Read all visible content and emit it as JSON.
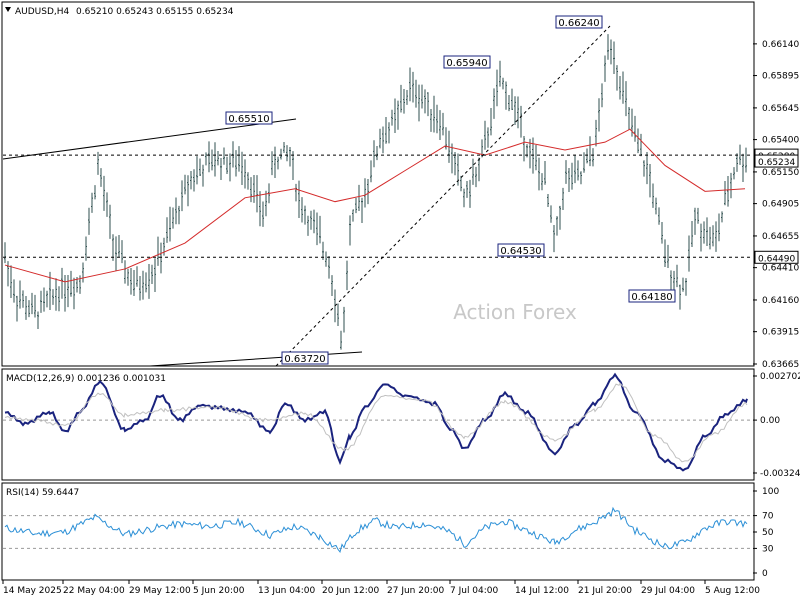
{
  "chart_data": [
    {
      "type": "candlestick",
      "panel": "price",
      "title": "AUDUSD,H4",
      "ohlc_header": "0.65210 0.65243 0.65155 0.65234",
      "ylim": [
        0.63665,
        0.6634
      ],
      "yticks": [
        "0.66140",
        "0.65895",
        "0.65645",
        "0.65400",
        "0.65150",
        "0.64905",
        "0.64655",
        "0.64410",
        "0.64160",
        "0.63915",
        "0.63665"
      ],
      "last_price": "0.65234",
      "series": [
        {
          "name": "",
          "kind": "moving-average",
          "color": "#d42b2b",
          "points": [
            [
              0,
              0.6443
            ],
            [
              60,
              0.643
            ],
            [
              120,
              0.644
            ],
            [
              180,
              0.646
            ],
            [
              240,
              0.6495
            ],
            [
              290,
              0.6502
            ],
            [
              330,
              0.6492
            ],
            [
              360,
              0.6497
            ],
            [
              400,
              0.6516
            ],
            [
              440,
              0.6535
            ],
            [
              480,
              0.6528
            ],
            [
              520,
              0.6538
            ],
            [
              560,
              0.6532
            ],
            [
              600,
              0.6538
            ],
            [
              625,
              0.6548
            ],
            [
              660,
              0.652
            ],
            [
              700,
              0.65
            ],
            [
              740,
              0.6502
            ]
          ]
        }
      ],
      "key_points": [
        {
          "label": "0.65510",
          "value": 0.6551,
          "pos": 0.34
        },
        {
          "label": "0.65940",
          "value": 0.6594,
          "pos": 0.67
        },
        {
          "label": "0.66240",
          "value": 0.6624,
          "pos": 0.82
        },
        {
          "label": "0.64530",
          "value": 0.6453,
          "pos": 0.73
        },
        {
          "label": "0.64180",
          "value": 0.6418,
          "pos": 0.91
        },
        {
          "label": "0.63720",
          "value": 0.6372,
          "pos": 0.45
        }
      ],
      "horizontal_levels": [
        {
          "label": "0.65280",
          "value": 0.6528,
          "style": "dashed"
        },
        {
          "label": "0.64490",
          "value": 0.6449,
          "style": "dashed"
        }
      ],
      "watermark": "Action Forex",
      "x_ticks": [
        "14 May 2025",
        "22 May 04:00",
        "29 May 12:00",
        "5 Jun 20:00",
        "13 Jun 04:00",
        "20 Jun 12:00",
        "27 Jun 20:00",
        "7 Jul 04:00",
        "14 Jul 12:00",
        "21 Jul 20:00",
        "29 Jul 04:00",
        "5 Aug 12:00"
      ]
    },
    {
      "type": "line",
      "panel": "macd",
      "title": "MACD(12,26,9) 0.001236 0.001031",
      "ylim": [
        -0.003241,
        0.002702
      ],
      "yticks": [
        "0.002702",
        "0.00",
        "-0.003241"
      ],
      "series": [
        {
          "name": "",
          "color": "#1a237e",
          "points": [
            [
              0,
              0.0005
            ],
            [
              20,
              -0.0002
            ],
            [
              45,
              0.0005
            ],
            [
              60,
              -0.0007
            ],
            [
              75,
              0.0005
            ],
            [
              95,
              0.0023
            ],
            [
              120,
              -0.0006
            ],
            [
              140,
              0.0
            ],
            [
              155,
              0.0015
            ],
            [
              175,
              0.0
            ],
            [
              195,
              0.0009
            ],
            [
              210,
              0.0008
            ],
            [
              240,
              0.0005
            ],
            [
              265,
              -0.0007
            ],
            [
              280,
              0.001
            ],
            [
              300,
              0.0
            ],
            [
              320,
              0.0005
            ],
            [
              335,
              -0.0025
            ],
            [
              345,
              -0.001
            ],
            [
              360,
              0.0008
            ],
            [
              380,
              0.0022
            ],
            [
              400,
              0.0015
            ],
            [
              430,
              0.001
            ],
            [
              445,
              -0.0005
            ],
            [
              460,
              -0.0017
            ],
            [
              480,
              0.0
            ],
            [
              500,
              0.0016
            ],
            [
              520,
              0.0005
            ],
            [
              550,
              -0.002
            ],
            [
              570,
              -0.0003
            ],
            [
              590,
              0.001
            ],
            [
              610,
              0.0027
            ],
            [
              630,
              0.0005
            ],
            [
              660,
              -0.0025
            ],
            [
              680,
              -0.003
            ],
            [
              700,
              -0.001
            ],
            [
              720,
              0.0003
            ],
            [
              742,
              0.0012
            ]
          ]
        },
        {
          "name": "",
          "color": "#c0c0c0",
          "points": [
            [
              0,
              0.0002
            ],
            [
              30,
              0.0
            ],
            [
              60,
              -0.0003
            ],
            [
              95,
              0.0016
            ],
            [
              120,
              0.0003
            ],
            [
              160,
              0.0006
            ],
            [
              210,
              0.0008
            ],
            [
              260,
              0.0
            ],
            [
              300,
              0.0004
            ],
            [
              340,
              -0.0018
            ],
            [
              380,
              0.0015
            ],
            [
              420,
              0.0012
            ],
            [
              460,
              -0.001
            ],
            [
              500,
              0.0011
            ],
            [
              550,
              -0.0012
            ],
            [
              590,
              0.0006
            ],
            [
              615,
              0.0022
            ],
            [
              650,
              -0.001
            ],
            [
              680,
              -0.0025
            ],
            [
              710,
              -0.0008
            ],
            [
              742,
              0.001
            ]
          ]
        }
      ]
    },
    {
      "type": "line",
      "panel": "rsi",
      "title": "RSI(14) 59.6447",
      "ylim": [
        0,
        100
      ],
      "yticks": [
        "100",
        "70",
        "50",
        "30",
        "0"
      ],
      "series": [
        {
          "name": "",
          "color": "#2b8fd6",
          "points": [
            [
              0,
              55
            ],
            [
              30,
              48
            ],
            [
              60,
              50
            ],
            [
              90,
              68
            ],
            [
              120,
              47
            ],
            [
              150,
              55
            ],
            [
              175,
              60
            ],
            [
              205,
              57
            ],
            [
              235,
              62
            ],
            [
              265,
              46
            ],
            [
              290,
              57
            ],
            [
              315,
              44
            ],
            [
              335,
              28
            ],
            [
              350,
              50
            ],
            [
              370,
              64
            ],
            [
              390,
              55
            ],
            [
              420,
              60
            ],
            [
              445,
              50
            ],
            [
              460,
              35
            ],
            [
              480,
              55
            ],
            [
              500,
              63
            ],
            [
              525,
              50
            ],
            [
              550,
              37
            ],
            [
              570,
              52
            ],
            [
              590,
              62
            ],
            [
              610,
              77
            ],
            [
              630,
              52
            ],
            [
              660,
              32
            ],
            [
              680,
              37
            ],
            [
              700,
              55
            ],
            [
              720,
              63
            ],
            [
              742,
              60
            ]
          ]
        }
      ]
    }
  ]
}
